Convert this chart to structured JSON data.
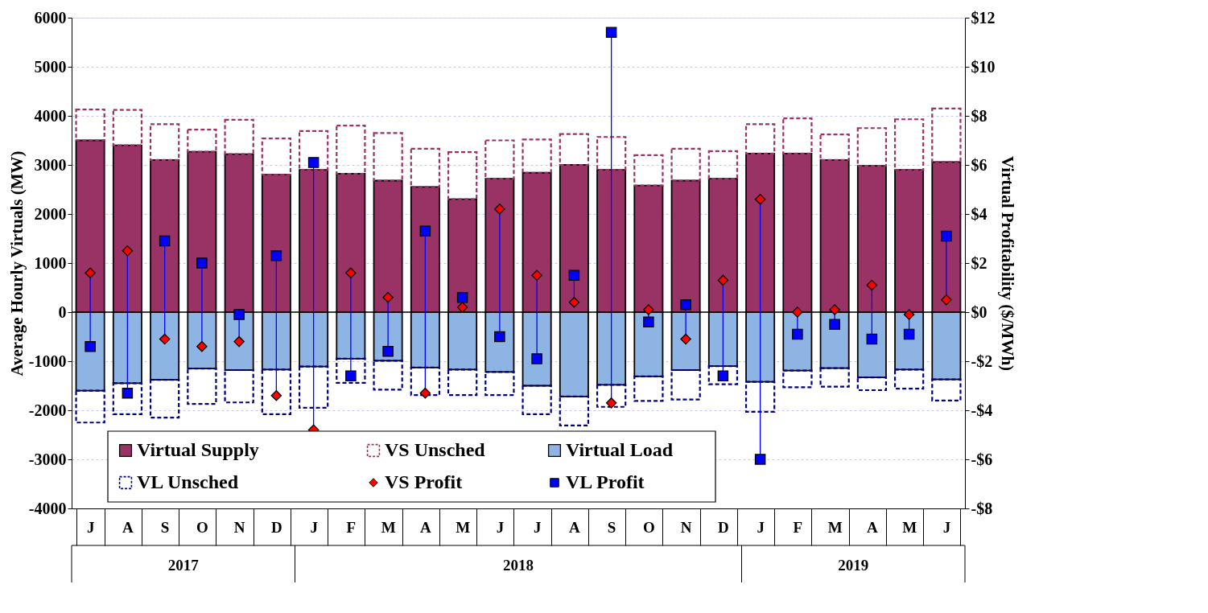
{
  "chart_data": {
    "type": "bar",
    "stacked": true,
    "categories": [
      "J",
      "A",
      "S",
      "O",
      "N",
      "D",
      "J",
      "F",
      "M",
      "A",
      "M",
      "J",
      "J",
      "A",
      "S",
      "O",
      "N",
      "D",
      "J",
      "F",
      "M",
      "A",
      "M",
      "J"
    ],
    "ylabel": "Average Hourly Virtuals (MW)",
    "y2label": "Virtual Profitability  ($/MWh)",
    "ylim": [
      -4000,
      6000
    ],
    "yticks": [
      -4000,
      -3000,
      -2000,
      -1000,
      0,
      1000,
      2000,
      3000,
      4000,
      5000,
      6000
    ],
    "y2lim": [
      -8,
      12
    ],
    "y2ticks": [
      {
        "value": -8,
        "label": "-$8"
      },
      {
        "value": -6,
        "label": "-$6"
      },
      {
        "value": -4,
        "label": "-$4"
      },
      {
        "value": -2,
        "label": "-$2"
      },
      {
        "value": 0,
        "label": "$0"
      },
      {
        "value": 2,
        "label": "$2"
      },
      {
        "value": 4,
        "label": "$4"
      },
      {
        "value": 6,
        "label": "$6"
      },
      {
        "value": 8,
        "label": "$8"
      },
      {
        "value": 10,
        "label": "$10"
      },
      {
        "value": 12,
        "label": "$12"
      }
    ],
    "grid": "y",
    "legend": "bottom left",
    "annotations": [
      "2017",
      "2018",
      "2019"
    ],
    "series": [
      {
        "name": "Virtual Supply",
        "color": "#993366",
        "values": [
          3500,
          3400,
          3100,
          3270,
          3220,
          2800,
          2900,
          2820,
          2680,
          2550,
          2300,
          2720,
          2840,
          3000,
          2900,
          2580,
          2680,
          2720,
          3230,
          3230,
          3100,
          2980,
          2900,
          3060
        ]
      },
      {
        "name": "VS Unsched",
        "color": "#993366",
        "line_style": "dashed",
        "values": [
          630,
          720,
          730,
          450,
          700,
          740,
          790,
          980,
          970,
          780,
          960,
          780,
          680,
          630,
          670,
          620,
          650,
          560,
          600,
          720,
          520,
          770,
          1030,
          1090
        ]
      },
      {
        "name": "Virtual Load",
        "color": "#8db4e2",
        "values": [
          -1600,
          -1450,
          -1380,
          -1150,
          -1180,
          -1170,
          -1110,
          -950,
          -990,
          -1130,
          -1170,
          -1220,
          -1500,
          -1720,
          -1480,
          -1310,
          -1180,
          -1100,
          -1420,
          -1190,
          -1140,
          -1330,
          -1170,
          -1370
        ]
      },
      {
        "name": "VL Unsched",
        "color": "#000080",
        "line_style": "dashed",
        "values": [
          -650,
          -630,
          -770,
          -720,
          -660,
          -910,
          -840,
          -490,
          -590,
          -560,
          -520,
          -470,
          -580,
          -590,
          -450,
          -500,
          -600,
          -370,
          -610,
          -340,
          -380,
          -260,
          -390,
          -430
        ]
      },
      {
        "name": "VS Profit",
        "type": "scatter",
        "axis": "y2",
        "marker": "diamond",
        "color": "#ff0000",
        "values": [
          1.6,
          2.5,
          -1.1,
          -1.4,
          -1.2,
          -3.4,
          -4.8,
          1.6,
          0.6,
          -3.3,
          0.2,
          4.2,
          1.5,
          0.4,
          -3.7,
          0.1,
          -1.1,
          1.3,
          4.6,
          0.0,
          0.1,
          1.1,
          -0.1,
          0.5
        ]
      },
      {
        "name": "VL Profit",
        "type": "scatter",
        "axis": "y2",
        "marker": "square",
        "color": "#0000ff",
        "values": [
          -1.4,
          -3.3,
          2.9,
          2.0,
          -0.1,
          2.3,
          6.1,
          -2.6,
          -1.6,
          3.3,
          0.6,
          -1.0,
          -1.9,
          1.5,
          11.4,
          -0.4,
          0.3,
          -2.6,
          -6.0,
          -0.9,
          -0.5,
          -1.1,
          -0.9,
          3.1
        ]
      }
    ]
  }
}
